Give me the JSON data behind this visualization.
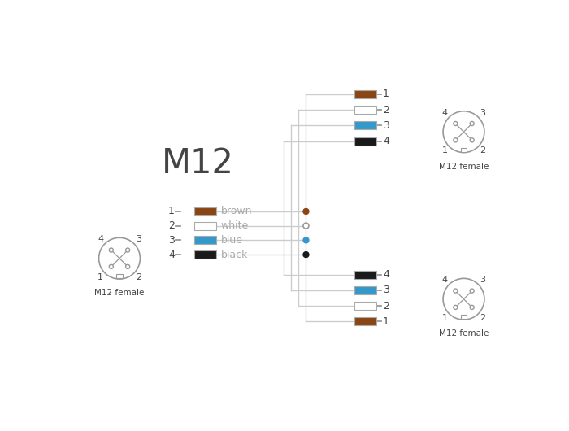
{
  "bg_color": "#ffffff",
  "line_color": "#cccccc",
  "text_color": "#444444",
  "brown": "#8B4513",
  "blue": "#3399cc",
  "black": "#1a1a1a",
  "title": "M12",
  "connector_label": "M12 female",
  "wire_labels": [
    "brown",
    "white",
    "blue",
    "black"
  ],
  "wire_colors": [
    "#8B4513",
    "#ffffff",
    "#3399cc",
    "#1a1a1a"
  ],
  "top_bar_colors": [
    "#8B4513",
    "#ffffff",
    "#3399cc",
    "#1a1a1a"
  ],
  "top_bar_labels": [
    "1",
    "2",
    "3",
    "4"
  ],
  "bot_bar_colors": [
    "#1a1a1a",
    "#3399cc",
    "#ffffff",
    "#8B4513"
  ],
  "bot_bar_labels": [
    "4",
    "3",
    "2",
    "1"
  ]
}
